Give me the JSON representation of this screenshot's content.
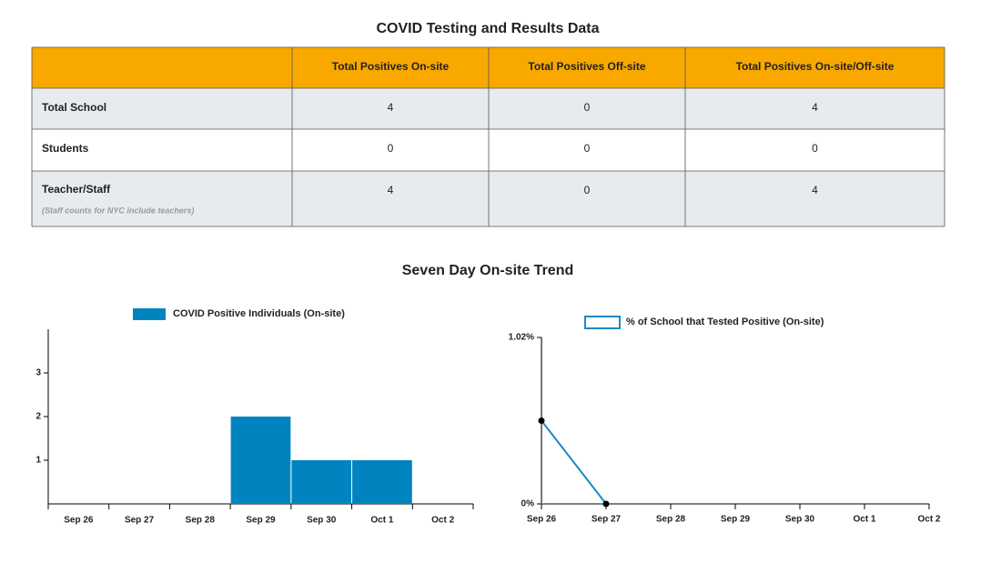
{
  "table": {
    "title": "COVID Testing and Results Data",
    "columns": [
      "Total Positives On-site",
      "Total Positives Off-site",
      "Total Positives On-site/Off-site"
    ],
    "rows": [
      {
        "label": "Total School",
        "values": [
          4,
          0,
          4
        ]
      },
      {
        "label": "Students",
        "values": [
          0,
          0,
          0
        ]
      },
      {
        "label": "Teacher/Staff",
        "note": "(Staff counts for NYC include teachers)",
        "values": [
          4,
          0,
          4
        ]
      }
    ]
  },
  "trend_title": "Seven Day On-site Trend",
  "chart_data": [
    {
      "type": "bar",
      "legend": "COVID Positive Individuals (On-site)",
      "color": "#0084c0",
      "categories": [
        "Sep 26",
        "Sep 27",
        "Sep 28",
        "Sep 29",
        "Sep 30",
        "Oct 1",
        "Oct 2"
      ],
      "values": [
        0,
        0,
        0,
        2,
        1,
        1,
        0
      ],
      "ylim": [
        0,
        4
      ],
      "yticks": [
        1,
        2,
        3
      ]
    },
    {
      "type": "line",
      "legend": "% of School that Tested Positive (On-site)",
      "color": "#1a8ac6",
      "categories": [
        "Sep 26",
        "Sep 27",
        "Sep 28",
        "Sep 29",
        "Sep 30",
        "Oct 1",
        "Oct 2"
      ],
      "values": [
        0.51,
        0,
        null,
        null,
        null,
        null,
        null
      ],
      "ylim": [
        0,
        1.02
      ],
      "yticks": [
        {
          "value": 0,
          "label": "0%"
        },
        {
          "value": 1.02,
          "label": "1.02%"
        }
      ]
    }
  ]
}
